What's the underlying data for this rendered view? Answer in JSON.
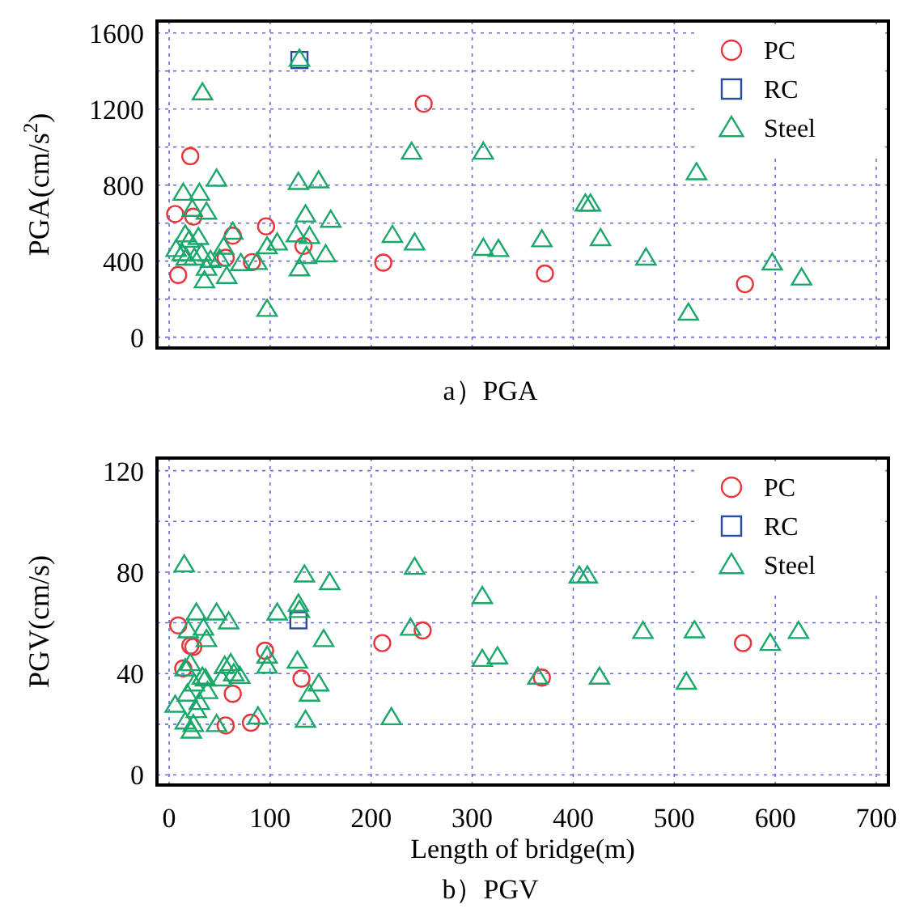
{
  "chart_data": [
    {
      "type": "scatter",
      "title": "a）PGA",
      "ylabel": "PGA(cm/s$^{2}$)",
      "xlim": [
        -12,
        712
      ],
      "ylim": [
        -57,
        1663
      ],
      "xticks": [
        {
          "value": 0,
          "label": null
        },
        {
          "value": 100,
          "label": null
        },
        {
          "value": 200,
          "label": null
        },
        {
          "value": 300,
          "label": null
        },
        {
          "value": 400,
          "label": null
        },
        {
          "value": 500,
          "label": null
        },
        {
          "value": 600,
          "label": null
        },
        {
          "value": 700,
          "label": null
        }
      ],
      "yticks": [
        0,
        {
          "value": 200,
          "label": null
        },
        400,
        {
          "value": 600,
          "label": null
        },
        800,
        {
          "value": 1000,
          "label": null
        },
        1200,
        {
          "value": 1400,
          "label": null
        },
        1600
      ],
      "tick_labels": "y",
      "grid": true,
      "legend": "top right",
      "series": [
        {
          "name": "PC",
          "color": "#e8343c",
          "marker": "circle",
          "x": [
            9,
            21,
            6,
            24,
            63,
            56,
            82,
            96,
            133,
            212,
            252,
            372,
            570
          ],
          "values": [
            327,
            952,
            648,
            634,
            534,
            418,
            395,
            583,
            480,
            392,
            1228,
            335,
            279
          ]
        },
        {
          "name": "RC",
          "color": "#2a4aa0",
          "marker": "square",
          "x": [
            129
          ],
          "values": [
            1458
          ]
        },
        {
          "name": "Steel",
          "color": "#1aa86a",
          "marker": "triangle",
          "x": [
            33,
            129,
            7,
            14,
            30,
            23,
            37,
            47,
            16,
            20,
            29,
            13,
            17,
            25,
            32,
            35,
            37,
            41,
            50,
            54,
            57,
            63,
            71,
            87,
            97,
            97,
            107,
            128,
            148,
            126,
            135,
            139,
            136,
            129,
            155,
            160,
            221,
            240,
            243,
            311,
            311,
            326,
            369,
            412,
            417,
            427,
            472,
            514,
            522,
            597,
            626
          ],
          "values": [
            1287,
            1464,
            463,
            759,
            759,
            674,
            659,
            833,
            540,
            512,
            526,
            441,
            418,
            418,
            441,
            298,
            364,
            406,
            412,
            475,
            321,
            554,
            389,
            395,
            148,
            477,
            497,
            816,
            824,
            540,
            645,
            531,
            426,
            361,
            435,
            617,
            537,
            975,
            497,
            975,
            469,
            463,
            514,
            702,
            702,
            520,
            418,
            128,
            867,
            392,
            313
          ]
        }
      ]
    },
    {
      "type": "scatter",
      "title": "b）PGV",
      "xlabel": "Length of bridge(m)",
      "ylabel": "PGV(cm/s)",
      "xlim": [
        -12,
        712
      ],
      "ylim": [
        -4,
        125
      ],
      "xticks": [
        0,
        100,
        200,
        300,
        400,
        500,
        600,
        700
      ],
      "yticks": [
        0,
        {
          "value": 20,
          "label": null
        },
        40,
        {
          "value": 60,
          "label": null
        },
        80,
        {
          "value": 100,
          "label": null
        },
        120
      ],
      "grid": true,
      "legend": "top right",
      "series": [
        {
          "name": "PC",
          "color": "#e8343c",
          "marker": "circle",
          "x": [
            9,
            21,
            24,
            14,
            63,
            56,
            81,
            95,
            131,
            211,
            251,
            369,
            568
          ],
          "values": [
            59,
            51,
            50.5,
            42,
            32,
            19.5,
            20.6,
            49,
            38,
            52,
            57,
            38.4,
            52
          ]
        },
        {
          "name": "RC",
          "color": "#2a4aa0",
          "marker": "square",
          "x": [
            128
          ],
          "values": [
            61
          ]
        },
        {
          "name": "Steel",
          "color": "#1aa86a",
          "marker": "triangle",
          "x": [
            15,
            27,
            47,
            34,
            19,
            59,
            37,
            16,
            21,
            6,
            16,
            22,
            24,
            27,
            30,
            18,
            25,
            33,
            38,
            36,
            47,
            52,
            55,
            61,
            64,
            70,
            88,
            97,
            97,
            107,
            127,
            128,
            129,
            134,
            135,
            139,
            148,
            153,
            159,
            220,
            239,
            243,
            310,
            310,
            325,
            365,
            406,
            414,
            426,
            469,
            512,
            520,
            595,
            623
          ],
          "values": [
            83,
            64,
            64,
            58,
            57,
            60.5,
            53.5,
            42,
            44,
            27.6,
            21,
            17.4,
            20,
            25.5,
            28.7,
            32,
            36,
            38.7,
            33,
            38,
            20,
            38,
            43,
            44,
            40,
            39,
            23,
            47,
            43,
            64,
            45,
            67.5,
            65,
            79,
            21.7,
            32,
            36,
            53.5,
            76,
            22.7,
            58,
            82,
            70.5,
            45.7,
            46.7,
            38.7,
            78.6,
            78.6,
            38.7,
            56.7,
            36.7,
            57,
            52,
            56.7
          ]
        }
      ]
    }
  ]
}
